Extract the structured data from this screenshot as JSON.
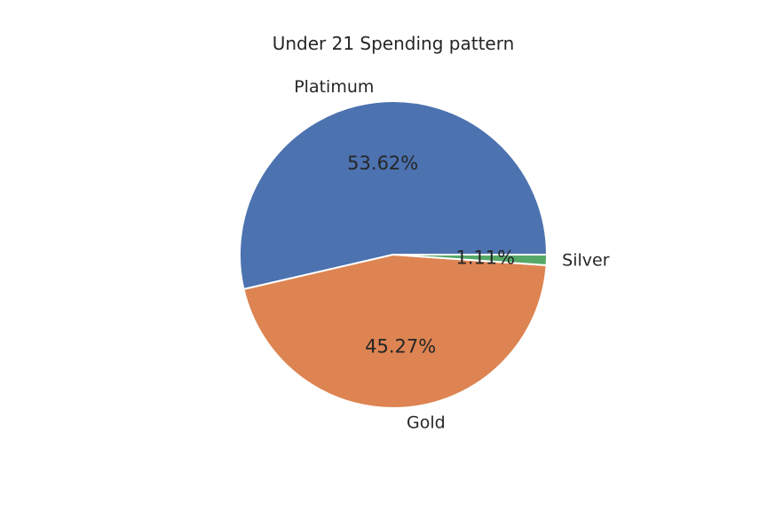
{
  "chart_data": {
    "type": "pie",
    "title": "Under 21 Spending pattern",
    "start_angle_deg": 0,
    "direction": "counterclockwise",
    "slices": [
      {
        "label": "Platimum",
        "value": 53.62,
        "pct_label": "53.62%",
        "color": "#4c72b0"
      },
      {
        "label": "Gold",
        "value": 45.27,
        "pct_label": "45.27%",
        "color": "#dd8452"
      },
      {
        "label": "Silver",
        "value": 1.11,
        "pct_label": "1.11%",
        "color": "#55a868"
      }
    ]
  }
}
